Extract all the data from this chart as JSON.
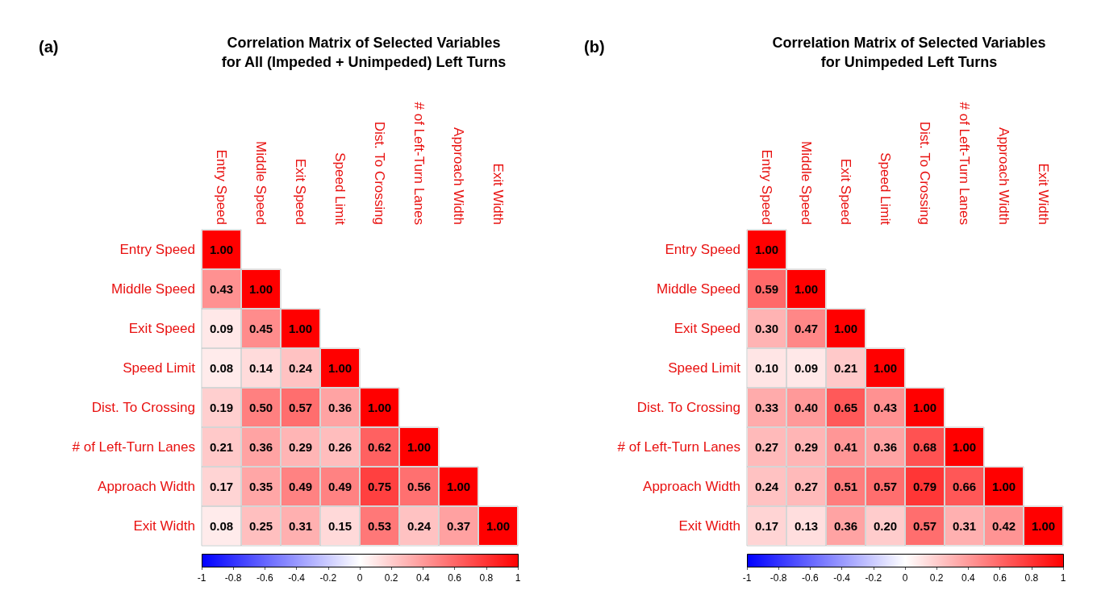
{
  "chart_data": [
    {
      "type": "heatmap",
      "title": "Correlation Matrix of Selected Variables\nfor All (Impeded + Unimpeded) Left Turns",
      "annotations": [
        "(a)"
      ],
      "categories": [
        "Entry Speed",
        "Middle Speed",
        "Exit Speed",
        "Speed Limit",
        "Dist. To Crossing",
        "# of Left-Turn Lanes",
        "Approach Width",
        "Exit Width"
      ],
      "y_categories": [
        "Entry Speed",
        "Middle Speed",
        "Exit Speed",
        "Speed Limit",
        "Dist. To Crossing",
        "# of Left-Turn Lanes",
        "Approach Width",
        "Exit Width"
      ],
      "cells": [
        [
          1,
          null,
          null,
          null,
          null,
          null,
          null,
          null
        ],
        [
          0.43,
          1,
          null,
          null,
          null,
          null,
          null,
          null
        ],
        [
          0.09,
          0.45,
          1,
          null,
          null,
          null,
          null,
          null
        ],
        [
          0.08,
          0.14,
          0.24,
          1,
          null,
          null,
          null,
          null
        ],
        [
          0.19,
          0.5,
          0.57,
          0.36,
          1,
          null,
          null,
          null
        ],
        [
          0.21,
          0.36,
          0.29,
          0.26,
          0.62,
          1,
          null,
          null
        ],
        [
          0.17,
          0.35,
          0.49,
          0.49,
          0.75,
          0.56,
          1,
          null
        ],
        [
          0.08,
          0.25,
          0.31,
          0.15,
          0.53,
          0.24,
          0.37,
          1
        ]
      ],
      "cell_labels": [
        [
          "1.00",
          null,
          null,
          null,
          null,
          null,
          null,
          null
        ],
        [
          "0.43",
          "1.00",
          null,
          null,
          null,
          null,
          null,
          null
        ],
        [
          "0.09",
          "0.45",
          "1.00",
          null,
          null,
          null,
          null,
          null
        ],
        [
          "0.08",
          "0.14",
          "0.24",
          "1.00",
          null,
          null,
          null,
          null
        ],
        [
          "0.19",
          "0.50",
          "0.57",
          "0.36",
          "1.00",
          null,
          null,
          null
        ],
        [
          "0.21",
          "0.36",
          "0.29",
          "0.26",
          "0.62",
          "1.00",
          null,
          null
        ],
        [
          "0.17",
          "0.35",
          "0.49",
          "0.49",
          "0.75",
          "0.56",
          "1.00",
          null
        ],
        [
          "0.08",
          "0.25",
          "0.31",
          "0.15",
          "0.53",
          "0.24",
          "0.37",
          "1.00"
        ]
      ],
      "clim": [
        -1,
        1
      ],
      "cticks": [
        -1,
        -0.8,
        -0.6,
        -0.4,
        -0.2,
        0,
        0.2,
        0.4,
        0.6,
        0.8,
        1
      ]
    },
    {
      "type": "heatmap",
      "title": "Correlation Matrix of Selected Variables\nfor Unimpeded Left Turns",
      "annotations": [
        "(b)"
      ],
      "categories": [
        "Entry Speed",
        "Middle Speed",
        "Exit Speed",
        "Speed Limit",
        "Dist. To Crossing",
        "# of Left-Turn Lanes",
        "Approach Width",
        "Exit Width"
      ],
      "y_categories": [
        "Entry Speed",
        "Middle Speed",
        "Exit Speed",
        "Speed Limit",
        "Dist. To Crossing",
        "# of Left-Turn Lanes",
        "Approach Width",
        "Exit Width"
      ],
      "cells": [
        [
          1,
          null,
          null,
          null,
          null,
          null,
          null,
          null
        ],
        [
          0.59,
          1,
          null,
          null,
          null,
          null,
          null,
          null
        ],
        [
          0.3,
          0.47,
          1,
          null,
          null,
          null,
          null,
          null
        ],
        [
          0.1,
          0.09,
          0.21,
          1,
          null,
          null,
          null,
          null
        ],
        [
          0.33,
          0.4,
          0.65,
          0.43,
          1,
          null,
          null,
          null
        ],
        [
          0.27,
          0.29,
          0.41,
          0.36,
          0.68,
          1,
          null,
          null
        ],
        [
          0.24,
          0.27,
          0.51,
          0.57,
          0.79,
          0.66,
          1,
          null
        ],
        [
          0.17,
          0.13,
          0.36,
          0.2,
          0.57,
          0.31,
          0.42,
          1
        ]
      ],
      "cell_labels": [
        [
          "1.00",
          null,
          null,
          null,
          null,
          null,
          null,
          null
        ],
        [
          "0.59",
          "1.00",
          null,
          null,
          null,
          null,
          null,
          null
        ],
        [
          "0.30",
          "0.47",
          "1.00",
          null,
          null,
          null,
          null,
          null
        ],
        [
          "0.10",
          "0.09",
          "0.21",
          "1.00",
          null,
          null,
          null,
          null
        ],
        [
          "0.33",
          "0.40",
          "0.65",
          "0.43",
          "1.00",
          null,
          null,
          null
        ],
        [
          "0.27",
          "0.29",
          "0.41",
          "0.36",
          "0.68",
          "1.00",
          null,
          null
        ],
        [
          "0.24",
          "0.27",
          "0.51",
          "0.57",
          "0.79",
          "0.66",
          "1.00",
          null
        ],
        [
          "0.17",
          "0.13",
          "0.36",
          "0.20",
          "0.57",
          "0.31",
          "0.42",
          "1.00"
        ]
      ],
      "clim": [
        -1,
        1
      ],
      "cticks": [
        -1,
        -0.8,
        -0.6,
        -0.4,
        -0.2,
        0,
        0.2,
        0.4,
        0.6,
        0.8,
        1
      ]
    }
  ]
}
